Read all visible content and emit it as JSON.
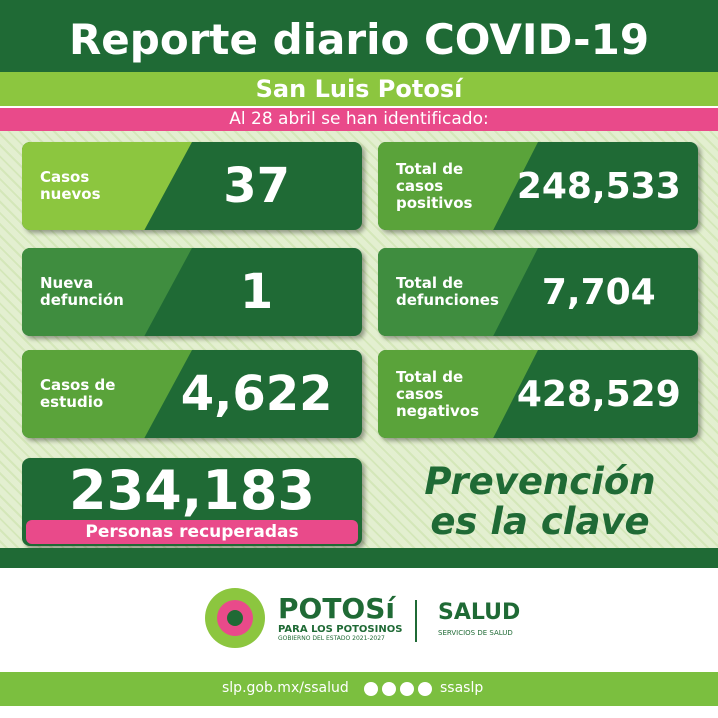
{
  "header": {
    "title": "Reporte diario COVID-19",
    "subtitle": "San Luis Potosí",
    "date_banner": "Al 28 abril se han identificado:"
  },
  "cards": [
    {
      "label": [
        "Casos",
        "nuevos"
      ],
      "value": "37"
    },
    {
      "label": [
        "Total de",
        "casos",
        "positivos"
      ],
      "value": "248,533"
    },
    {
      "label": [
        "Nueva",
        "defunción"
      ],
      "value": "1"
    },
    {
      "label": [
        "Total de",
        "defunciones"
      ],
      "value": "7,704"
    },
    {
      "label": [
        "Casos de",
        "estudio"
      ],
      "value": "4,622"
    },
    {
      "label": [
        "Total de",
        "casos",
        "negativos"
      ],
      "value": "428,529"
    }
  ],
  "recovered": {
    "value": "234,183",
    "label": "Personas recuperadas"
  },
  "slogan": [
    "Prevención",
    "es la clave"
  ],
  "footer": {
    "brand": "POTOSí",
    "brand_sub": "PARA LOS POTOSINOS",
    "government": "GOBIERNO DEL ESTADO 2021-2027",
    "agency": "SALUD",
    "agency_sub": "SERVICIOS DE SALUD",
    "url": "slp.gob.mx/ssalud",
    "handle": "ssaslp"
  }
}
